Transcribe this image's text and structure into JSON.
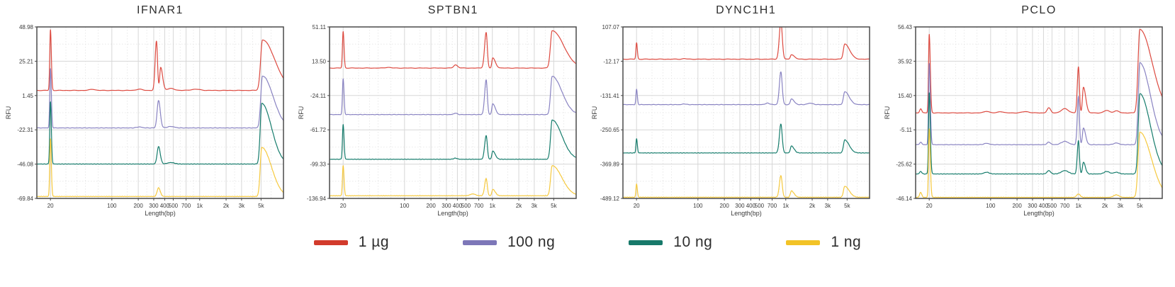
{
  "legend": {
    "items": [
      {
        "label": "1 µg",
        "color": "#d23b2c"
      },
      {
        "label": "100 ng",
        "color": "#7d77b8"
      },
      {
        "label": "10 ng",
        "color": "#17796a"
      },
      {
        "label": "1 ng",
        "color": "#f2c327"
      }
    ]
  },
  "chart_data": [
    {
      "type": "line",
      "title": "IFNAR1",
      "xlabel": "Length(bp)",
      "ylabel": "RFU",
      "xscale": "log",
      "xlim": [
        14,
        9000
      ],
      "xtick_values": [
        20,
        100,
        200,
        300,
        400,
        500,
        700,
        1000,
        2000,
        3000,
        5000
      ],
      "xtick_labels": [
        "20",
        "100",
        "200",
        "300",
        "400",
        "500",
        "700",
        "1k",
        "2k",
        "3k",
        "5k"
      ],
      "xminor": [
        30,
        40,
        50,
        70,
        150,
        250,
        350,
        450,
        600,
        850,
        1500,
        2500,
        4000,
        6500
      ],
      "ytick_labels": [
        "48.98",
        "25.21",
        "1.45",
        "-22.31",
        "-46.08",
        "-69.84"
      ],
      "series": [
        {
          "name": "1 µg",
          "color": "#dd4a40",
          "baseline": 5,
          "peaks": [
            [
              20,
              42,
              0.008,
              0.01
            ],
            [
              60,
              0.8,
              0.03,
              0.03
            ],
            [
              205,
              0.9,
              0.03,
              0.03
            ],
            [
              322,
              34,
              0.015,
              0.012
            ],
            [
              360,
              16,
              0.011,
              0.022
            ],
            [
              470,
              1.3,
              0.04,
              0.04
            ],
            [
              900,
              0.8,
              0.05,
              0.05
            ],
            [
              5200,
              35,
              0.022,
              0.14
            ]
          ]
        },
        {
          "name": "100 ng",
          "color": "#8983c2",
          "baseline": -21,
          "peaks": [
            [
              20,
              41,
              0.008,
              0.01
            ],
            [
              205,
              0.7,
              0.03,
              0.03
            ],
            [
              340,
              19,
              0.016,
              0.02
            ],
            [
              470,
              1,
              0.04,
              0.04
            ],
            [
              5200,
              36,
              0.02,
              0.12
            ]
          ]
        },
        {
          "name": "10 ng",
          "color": "#157c6c",
          "baseline": -46,
          "peaks": [
            [
              20,
              43,
              0.008,
              0.01
            ],
            [
              340,
              12,
              0.016,
              0.02
            ],
            [
              470,
              1,
              0.04,
              0.04
            ],
            [
              5100,
              42,
              0.018,
              0.11
            ]
          ]
        },
        {
          "name": "1 ng",
          "color": "#f6c93e",
          "baseline": -68.5,
          "peaks": [
            [
              20,
              40,
              0.008,
              0.01
            ],
            [
              340,
              6,
              0.016,
              0.02
            ],
            [
              5100,
              34,
              0.018,
              0.11
            ]
          ]
        }
      ]
    },
    {
      "type": "line",
      "title": "SPTBN1",
      "xlabel": "Length(bp)",
      "ylabel": "RFU",
      "xscale": "log",
      "xlim": [
        14,
        9000
      ],
      "xtick_values": [
        20,
        100,
        200,
        300,
        400,
        500,
        700,
        1000,
        2000,
        3000,
        5000
      ],
      "xtick_labels": [
        "20",
        "100",
        "200",
        "300",
        "400",
        "500",
        "700",
        "1k",
        "2k",
        "3k",
        "5k"
      ],
      "xminor": [
        30,
        40,
        50,
        70,
        150,
        250,
        350,
        450,
        600,
        850,
        1500,
        2500,
        4000,
        6500
      ],
      "ytick_labels": [
        "51.11",
        "13.50",
        "-24.11",
        "-61.72",
        "-99.33",
        "-136.94"
      ],
      "series": [
        {
          "name": "1 µg",
          "color": "#dd4a40",
          "baseline": 6,
          "peaks": [
            [
              20,
              40,
              0.008,
              0.01
            ],
            [
              65,
              0.8,
              0.03,
              0.03
            ],
            [
              380,
              3.5,
              0.02,
              0.025
            ],
            [
              850,
              39,
              0.018,
              0.013
            ],
            [
              1010,
              11,
              0.01,
              0.03
            ],
            [
              4800,
              41,
              0.02,
              0.13
            ]
          ]
        },
        {
          "name": "100 ng",
          "color": "#8983c2",
          "baseline": -45,
          "peaks": [
            [
              20,
              39,
              0.008,
              0.01
            ],
            [
              380,
              1.5,
              0.02,
              0.02
            ],
            [
              850,
              38,
              0.017,
              0.013
            ],
            [
              1010,
              12,
              0.01,
              0.028
            ],
            [
              4800,
              42,
              0.018,
              0.11
            ]
          ]
        },
        {
          "name": "10 ng",
          "color": "#157c6c",
          "baseline": -94,
          "peaks": [
            [
              20,
              38,
              0.008,
              0.01
            ],
            [
              380,
              1.2,
              0.02,
              0.02
            ],
            [
              850,
              26,
              0.017,
              0.013
            ],
            [
              1010,
              9,
              0.01,
              0.028
            ],
            [
              4800,
              43,
              0.018,
              0.11
            ]
          ]
        },
        {
          "name": "1 ng",
          "color": "#f6c93e",
          "baseline": -134,
          "peaks": [
            [
              20,
              33,
              0.008,
              0.01
            ],
            [
              600,
              2,
              0.03,
              0.03
            ],
            [
              850,
              19,
              0.017,
              0.013
            ],
            [
              1010,
              7,
              0.01,
              0.028
            ],
            [
              4800,
              33,
              0.018,
              0.11
            ]
          ]
        }
      ]
    },
    {
      "type": "line",
      "title": "DYNC1H1",
      "xlabel": "Length(bp)",
      "ylabel": "RFU",
      "xscale": "log",
      "xlim": [
        14,
        9000
      ],
      "xtick_values": [
        20,
        100,
        200,
        300,
        400,
        500,
        700,
        1000,
        2000,
        3000,
        5000
      ],
      "xtick_labels": [
        "20",
        "100",
        "200",
        "300",
        "400",
        "500",
        "700",
        "1k",
        "2k",
        "3k",
        "5k"
      ],
      "xminor": [
        30,
        40,
        50,
        70,
        150,
        250,
        350,
        450,
        600,
        850,
        1500,
        2500,
        4000,
        6500
      ],
      "ytick_labels": [
        "107.07",
        "-12.17",
        "-131.41",
        "-250.65",
        "-369.89",
        "-489.12"
      ],
      "series": [
        {
          "name": "1 µg",
          "color": "#dd4a40",
          "baseline": -5,
          "peaks": [
            [
              20,
              57,
              0.007,
              0.009
            ],
            [
              70,
              2,
              0.02,
              0.02
            ],
            [
              880,
              130,
              0.018,
              0.016
            ],
            [
              1160,
              16,
              0.012,
              0.032
            ],
            [
              4700,
              53,
              0.016,
              0.055
            ]
          ]
        },
        {
          "name": "100 ng",
          "color": "#8983c2",
          "baseline": -163,
          "peaks": [
            [
              20,
              53,
              0.007,
              0.009
            ],
            [
              70,
              2.5,
              0.02,
              0.02
            ],
            [
              620,
              5,
              0.025,
              0.025
            ],
            [
              880,
              114,
              0.017,
              0.015
            ],
            [
              1160,
              20,
              0.012,
              0.03
            ],
            [
              1900,
              5,
              0.03,
              0.03
            ],
            [
              4700,
              45,
              0.015,
              0.05
            ]
          ]
        },
        {
          "name": "10 ng",
          "color": "#157c6c",
          "baseline": -331,
          "peaks": [
            [
              20,
              49,
              0.007,
              0.009
            ],
            [
              880,
              100,
              0.017,
              0.015
            ],
            [
              1160,
              24,
              0.012,
              0.03
            ],
            [
              4700,
              45,
              0.015,
              0.05
            ]
          ]
        },
        {
          "name": "1 ng",
          "color": "#f6c93e",
          "baseline": -485,
          "peaks": [
            [
              20,
              46,
              0.007,
              0.009
            ],
            [
              880,
              75,
              0.017,
              0.015
            ],
            [
              1160,
              22,
              0.012,
              0.03
            ],
            [
              4700,
              38,
              0.015,
              0.05
            ]
          ]
        }
      ]
    },
    {
      "type": "line",
      "title": "PCLO",
      "xlabel": "Length(bp)",
      "ylabel": "RFU",
      "xscale": "log",
      "xlim": [
        14,
        9000
      ],
      "xtick_values": [
        20,
        100,
        200,
        300,
        400,
        500,
        700,
        1000,
        2000,
        3000,
        5000
      ],
      "xtick_labels": [
        "20",
        "100",
        "200",
        "300",
        "400",
        "500",
        "700",
        "1k",
        "2k",
        "3k",
        "5k"
      ],
      "xminor": [
        30,
        40,
        50,
        70,
        150,
        250,
        350,
        450,
        600,
        850,
        1500,
        2500,
        4000,
        6500
      ],
      "ytick_labels": [
        "56.43",
        "35.92",
        "15.40",
        "-5.11",
        "-25.62",
        "-46.14"
      ],
      "series": [
        {
          "name": "1 µg",
          "color": "#dd4a40",
          "baseline": 5,
          "peaks": [
            [
              16,
              2.5,
              0.012,
              0.012
            ],
            [
              20,
              47,
              0.008,
              0.012
            ],
            [
              90,
              1,
              0.03,
              0.03
            ],
            [
              130,
              0.8,
              0.03,
              0.03
            ],
            [
              250,
              0.8,
              0.04,
              0.04
            ],
            [
              460,
              3,
              0.02,
              0.02
            ],
            [
              700,
              2.5,
              0.04,
              0.04
            ],
            [
              1000,
              27.5,
              0.013,
              0.011
            ],
            [
              1140,
              15.5,
              0.011,
              0.026
            ],
            [
              2100,
              1.5,
              0.03,
              0.03
            ],
            [
              2700,
              1.2,
              0.03,
              0.03
            ],
            [
              5000,
              50,
              0.02,
              0.14
            ]
          ]
        },
        {
          "name": "100 ng",
          "color": "#8983c2",
          "baseline": -14,
          "peaks": [
            [
              16,
              1.5,
              0.012,
              0.012
            ],
            [
              20,
              48.5,
              0.008,
              0.012
            ],
            [
              90,
              0.8,
              0.03,
              0.03
            ],
            [
              460,
              1.5,
              0.02,
              0.02
            ],
            [
              700,
              2,
              0.04,
              0.04
            ],
            [
              1000,
              29,
              0.013,
              0.011
            ],
            [
              1140,
              10,
              0.011,
              0.024
            ],
            [
              2700,
              1,
              0.03,
              0.03
            ],
            [
              5000,
              49,
              0.018,
              0.12
            ]
          ]
        },
        {
          "name": "10 ng",
          "color": "#157c6c",
          "baseline": -31.5,
          "peaks": [
            [
              16,
              1.5,
              0.012,
              0.012
            ],
            [
              20,
              48.5,
              0.008,
              0.012
            ],
            [
              90,
              1,
              0.03,
              0.03
            ],
            [
              460,
              2,
              0.02,
              0.02
            ],
            [
              700,
              2,
              0.04,
              0.04
            ],
            [
              1000,
              20,
              0.013,
              0.011
            ],
            [
              1140,
              7,
              0.011,
              0.022
            ],
            [
              2100,
              1.5,
              0.03,
              0.03
            ],
            [
              2700,
              1,
              0.03,
              0.03
            ],
            [
              5000,
              48,
              0.018,
              0.12
            ]
          ]
        },
        {
          "name": "1 ng",
          "color": "#f6c93e",
          "baseline": -45.5,
          "peaks": [
            [
              16,
              3,
              0.012,
              0.012
            ],
            [
              20,
              41,
              0.008,
              0.012
            ],
            [
              1000,
              2,
              0.02,
              0.02
            ],
            [
              2700,
              1.5,
              0.03,
              0.03
            ],
            [
              5000,
              39,
              0.02,
              0.13
            ]
          ]
        }
      ]
    }
  ]
}
